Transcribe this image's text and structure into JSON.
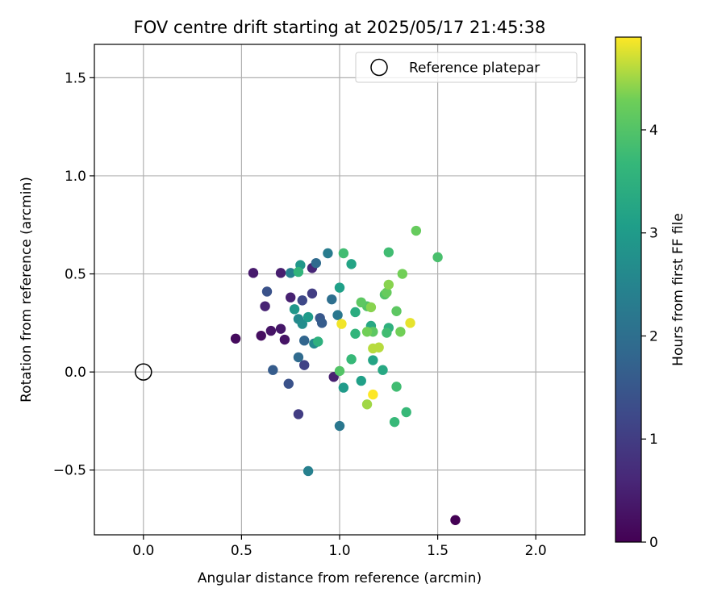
{
  "chart_data": {
    "type": "scatter",
    "title": "FOV centre drift starting at 2025/05/17 21:45:38",
    "xlabel": "Angular distance from reference (arcmin)",
    "ylabel": "Rotation from reference (arcmin)",
    "xlim": [
      -0.25,
      2.25
    ],
    "ylim": [
      -0.83,
      1.67
    ],
    "xticks": [
      0.0,
      0.5,
      1.0,
      1.5,
      2.0
    ],
    "yticks": [
      -0.5,
      0.0,
      0.5,
      1.0,
      1.5
    ],
    "xtick_labels": [
      "0.0",
      "0.5",
      "1.0",
      "1.5",
      "2.0"
    ],
    "ytick_labels": [
      "−0.5",
      "0.0",
      "0.5",
      "1.0",
      "1.5"
    ],
    "grid": true,
    "legend_position": "top-right",
    "reference": {
      "name": "Reference platepar",
      "x": 0.0,
      "y": 0.0
    },
    "colorbar": {
      "label": "Hours from first FF file",
      "min": 0,
      "max": 4.9,
      "ticks": [
        0,
        1,
        2,
        3,
        4
      ],
      "tick_labels": [
        "0",
        "1",
        "2",
        "3",
        "4"
      ],
      "colormap": "viridis"
    },
    "points": [
      {
        "x": 1.59,
        "y": -0.755,
        "h": 0.0
      },
      {
        "x": 0.47,
        "y": 0.17,
        "h": 0.15
      },
      {
        "x": 0.6,
        "y": 0.185,
        "h": 0.2
      },
      {
        "x": 0.65,
        "y": 0.21,
        "h": 0.3
      },
      {
        "x": 0.7,
        "y": 0.22,
        "h": 0.35
      },
      {
        "x": 0.72,
        "y": 0.165,
        "h": 0.3
      },
      {
        "x": 0.56,
        "y": 0.505,
        "h": 0.4
      },
      {
        "x": 0.7,
        "y": 0.505,
        "h": 0.45
      },
      {
        "x": 0.75,
        "y": 0.38,
        "h": 0.5
      },
      {
        "x": 0.62,
        "y": 0.335,
        "h": 0.55
      },
      {
        "x": 0.86,
        "y": 0.53,
        "h": 0.6
      },
      {
        "x": 0.97,
        "y": -0.025,
        "h": 0.5
      },
      {
        "x": 0.79,
        "y": -0.215,
        "h": 1.0
      },
      {
        "x": 0.82,
        "y": 0.035,
        "h": 1.1
      },
      {
        "x": 0.86,
        "y": 0.4,
        "h": 1.0
      },
      {
        "x": 0.81,
        "y": 0.365,
        "h": 1.2
      },
      {
        "x": 0.63,
        "y": 0.41,
        "h": 1.4
      },
      {
        "x": 0.74,
        "y": -0.06,
        "h": 1.4
      },
      {
        "x": 0.66,
        "y": 0.01,
        "h": 1.6
      },
      {
        "x": 0.9,
        "y": 0.275,
        "h": 1.5
      },
      {
        "x": 0.91,
        "y": 0.25,
        "h": 1.6
      },
      {
        "x": 0.82,
        "y": 0.16,
        "h": 1.8
      },
      {
        "x": 0.79,
        "y": 0.075,
        "h": 1.9
      },
      {
        "x": 0.88,
        "y": 0.555,
        "h": 1.9
      },
      {
        "x": 0.96,
        "y": 0.37,
        "h": 2.0
      },
      {
        "x": 0.99,
        "y": 0.29,
        "h": 2.2
      },
      {
        "x": 1.0,
        "y": -0.275,
        "h": 2.2
      },
      {
        "x": 0.84,
        "y": -0.505,
        "h": 2.4
      },
      {
        "x": 0.94,
        "y": 0.605,
        "h": 2.3
      },
      {
        "x": 0.75,
        "y": 0.505,
        "h": 2.4
      },
      {
        "x": 0.79,
        "y": 0.27,
        "h": 2.6
      },
      {
        "x": 0.87,
        "y": 0.145,
        "h": 2.6
      },
      {
        "x": 0.81,
        "y": 0.245,
        "h": 2.7
      },
      {
        "x": 0.8,
        "y": 0.545,
        "h": 2.9
      },
      {
        "x": 0.77,
        "y": 0.32,
        "h": 2.9
      },
      {
        "x": 0.84,
        "y": 0.28,
        "h": 3.0
      },
      {
        "x": 1.02,
        "y": -0.08,
        "h": 3.0
      },
      {
        "x": 1.11,
        "y": -0.045,
        "h": 3.1
      },
      {
        "x": 1.0,
        "y": 0.43,
        "h": 3.1
      },
      {
        "x": 1.06,
        "y": 0.55,
        "h": 3.2
      },
      {
        "x": 1.17,
        "y": 0.06,
        "h": 3.2
      },
      {
        "x": 1.22,
        "y": 0.01,
        "h": 3.3
      },
      {
        "x": 1.16,
        "y": 0.235,
        "h": 3.3
      },
      {
        "x": 1.08,
        "y": 0.305,
        "h": 3.4
      },
      {
        "x": 0.89,
        "y": 0.155,
        "h": 3.5
      },
      {
        "x": 1.25,
        "y": 0.225,
        "h": 3.5
      },
      {
        "x": 0.79,
        "y": 0.51,
        "h": 3.6
      },
      {
        "x": 1.08,
        "y": 0.195,
        "h": 3.6
      },
      {
        "x": 1.06,
        "y": 0.065,
        "h": 3.7
      },
      {
        "x": 1.28,
        "y": -0.255,
        "h": 3.7
      },
      {
        "x": 1.34,
        "y": -0.205,
        "h": 3.7
      },
      {
        "x": 1.29,
        "y": -0.075,
        "h": 3.8
      },
      {
        "x": 1.24,
        "y": 0.2,
        "h": 3.8
      },
      {
        "x": 1.02,
        "y": 0.605,
        "h": 3.8
      },
      {
        "x": 1.25,
        "y": 0.61,
        "h": 3.8
      },
      {
        "x": 1.5,
        "y": 0.585,
        "h": 3.9
      },
      {
        "x": 1.14,
        "y": 0.335,
        "h": 4.0
      },
      {
        "x": 1.23,
        "y": 0.395,
        "h": 4.0
      },
      {
        "x": 1.0,
        "y": 0.005,
        "h": 4.0
      },
      {
        "x": 1.11,
        "y": 0.355,
        "h": 4.1
      },
      {
        "x": 1.17,
        "y": 0.205,
        "h": 4.1
      },
      {
        "x": 1.29,
        "y": 0.31,
        "h": 4.1
      },
      {
        "x": 1.39,
        "y": 0.72,
        "h": 4.2
      },
      {
        "x": 1.24,
        "y": 0.405,
        "h": 4.2
      },
      {
        "x": 1.14,
        "y": 0.205,
        "h": 4.3
      },
      {
        "x": 1.31,
        "y": 0.205,
        "h": 4.3
      },
      {
        "x": 1.32,
        "y": 0.5,
        "h": 4.3
      },
      {
        "x": 1.25,
        "y": 0.445,
        "h": 4.4
      },
      {
        "x": 1.16,
        "y": 0.33,
        "h": 4.4
      },
      {
        "x": 1.14,
        "y": -0.165,
        "h": 4.5
      },
      {
        "x": 1.17,
        "y": 0.12,
        "h": 4.6
      },
      {
        "x": 1.2,
        "y": 0.125,
        "h": 4.6
      },
      {
        "x": 1.36,
        "y": 0.25,
        "h": 4.8
      },
      {
        "x": 1.01,
        "y": 0.245,
        "h": 4.85
      },
      {
        "x": 1.17,
        "y": -0.115,
        "h": 4.9
      }
    ]
  }
}
